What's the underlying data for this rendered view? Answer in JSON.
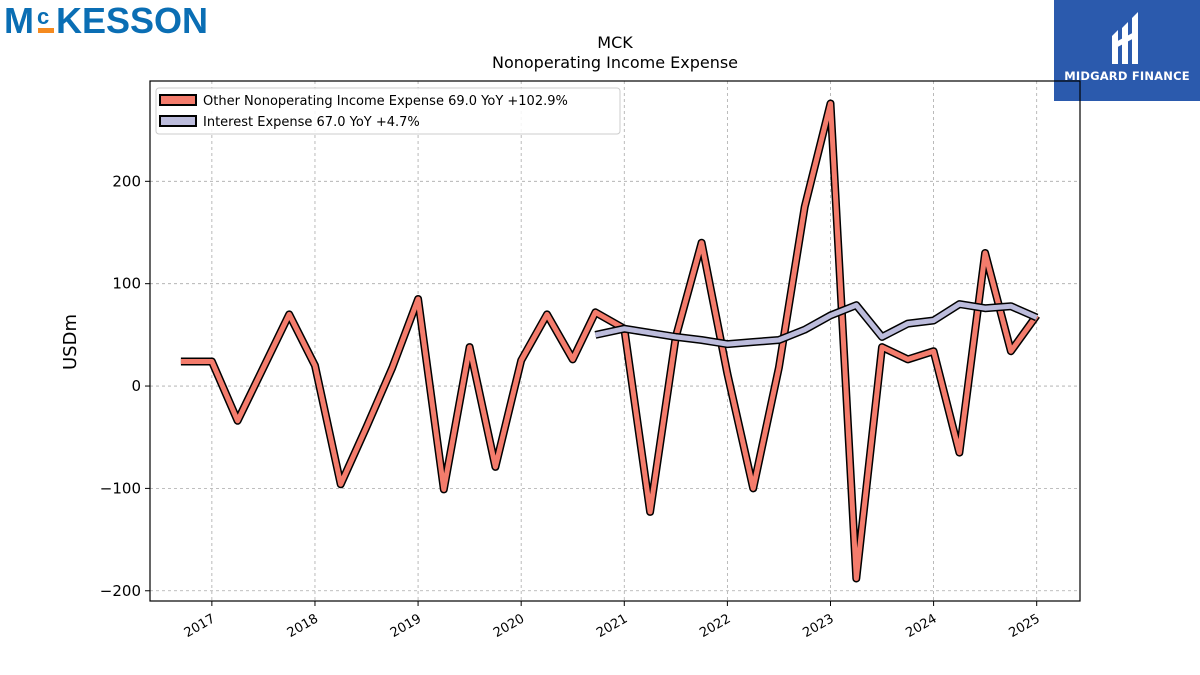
{
  "logos": {
    "company": {
      "name": "McKESSON",
      "text_main": "KESSON",
      "text_m": "M",
      "text_c": "c",
      "color": "#0a6eb4",
      "accent": "#f58a1f"
    },
    "publisher": {
      "name": "MIDGARD FINANCE",
      "color": "#2b5aad"
    }
  },
  "chart_data": {
    "type": "line",
    "title": "MCK",
    "subtitle": "Nonoperating Income Expense",
    "xlabel": "",
    "ylabel": "USDm",
    "ylim": [
      -210,
      298
    ],
    "xlim": [
      2016.4,
      2025.42
    ],
    "yticks": [
      -200,
      -100,
      0,
      100,
      200
    ],
    "ytick_labels": [
      "−200",
      "−100",
      "0",
      "100",
      "200"
    ],
    "xticks": [
      2017,
      2018,
      2019,
      2020,
      2021,
      2022,
      2023,
      2024,
      2025
    ],
    "xtick_labels": [
      "2017",
      "2018",
      "2019",
      "2020",
      "2021",
      "2022",
      "2023",
      "2024",
      "2025"
    ],
    "grid": true,
    "legend_position": "top-left",
    "series": [
      {
        "name": "Other Nonoperating Income Expense",
        "legend_label": "Other Nonoperating Income Expense  69.0 YoY +102.9%",
        "color": "#f47c6c",
        "x": [
          2016.7,
          2017.0,
          2017.25,
          2017.5,
          2017.75,
          2018.0,
          2018.25,
          2018.5,
          2018.75,
          2019.0,
          2019.25,
          2019.5,
          2019.75,
          2020.0,
          2020.25,
          2020.5,
          2020.72,
          2021.0,
          2021.25,
          2021.5,
          2021.75,
          2022.0,
          2022.25,
          2022.5,
          2022.75,
          2023.0,
          2023.25,
          2023.5,
          2023.75,
          2024.0,
          2024.25,
          2024.5,
          2024.75,
          2025.0
        ],
        "y": [
          24,
          24,
          -34,
          18,
          70,
          20,
          -96,
          -40,
          18,
          85,
          -101,
          38,
          -79,
          25,
          70,
          26,
          72,
          56,
          -123,
          48,
          140,
          12,
          -100,
          18,
          175,
          276,
          -188,
          38,
          26,
          34,
          -65,
          130,
          34,
          69
        ]
      },
      {
        "name": "Interest Expense",
        "legend_label": "Interest Expense  67.0 YoY +4.7%",
        "color": "#bcbcdc",
        "x": [
          2020.72,
          2021.0,
          2021.25,
          2021.5,
          2021.75,
          2022.0,
          2022.25,
          2022.5,
          2022.75,
          2023.0,
          2023.25,
          2023.5,
          2023.75,
          2024.0,
          2024.25,
          2024.5,
          2024.75,
          2025.0
        ],
        "y": [
          50,
          56,
          52,
          48,
          45,
          41,
          43,
          45,
          55,
          69,
          79,
          48,
          61,
          64,
          80,
          76,
          78,
          67
        ]
      }
    ]
  }
}
